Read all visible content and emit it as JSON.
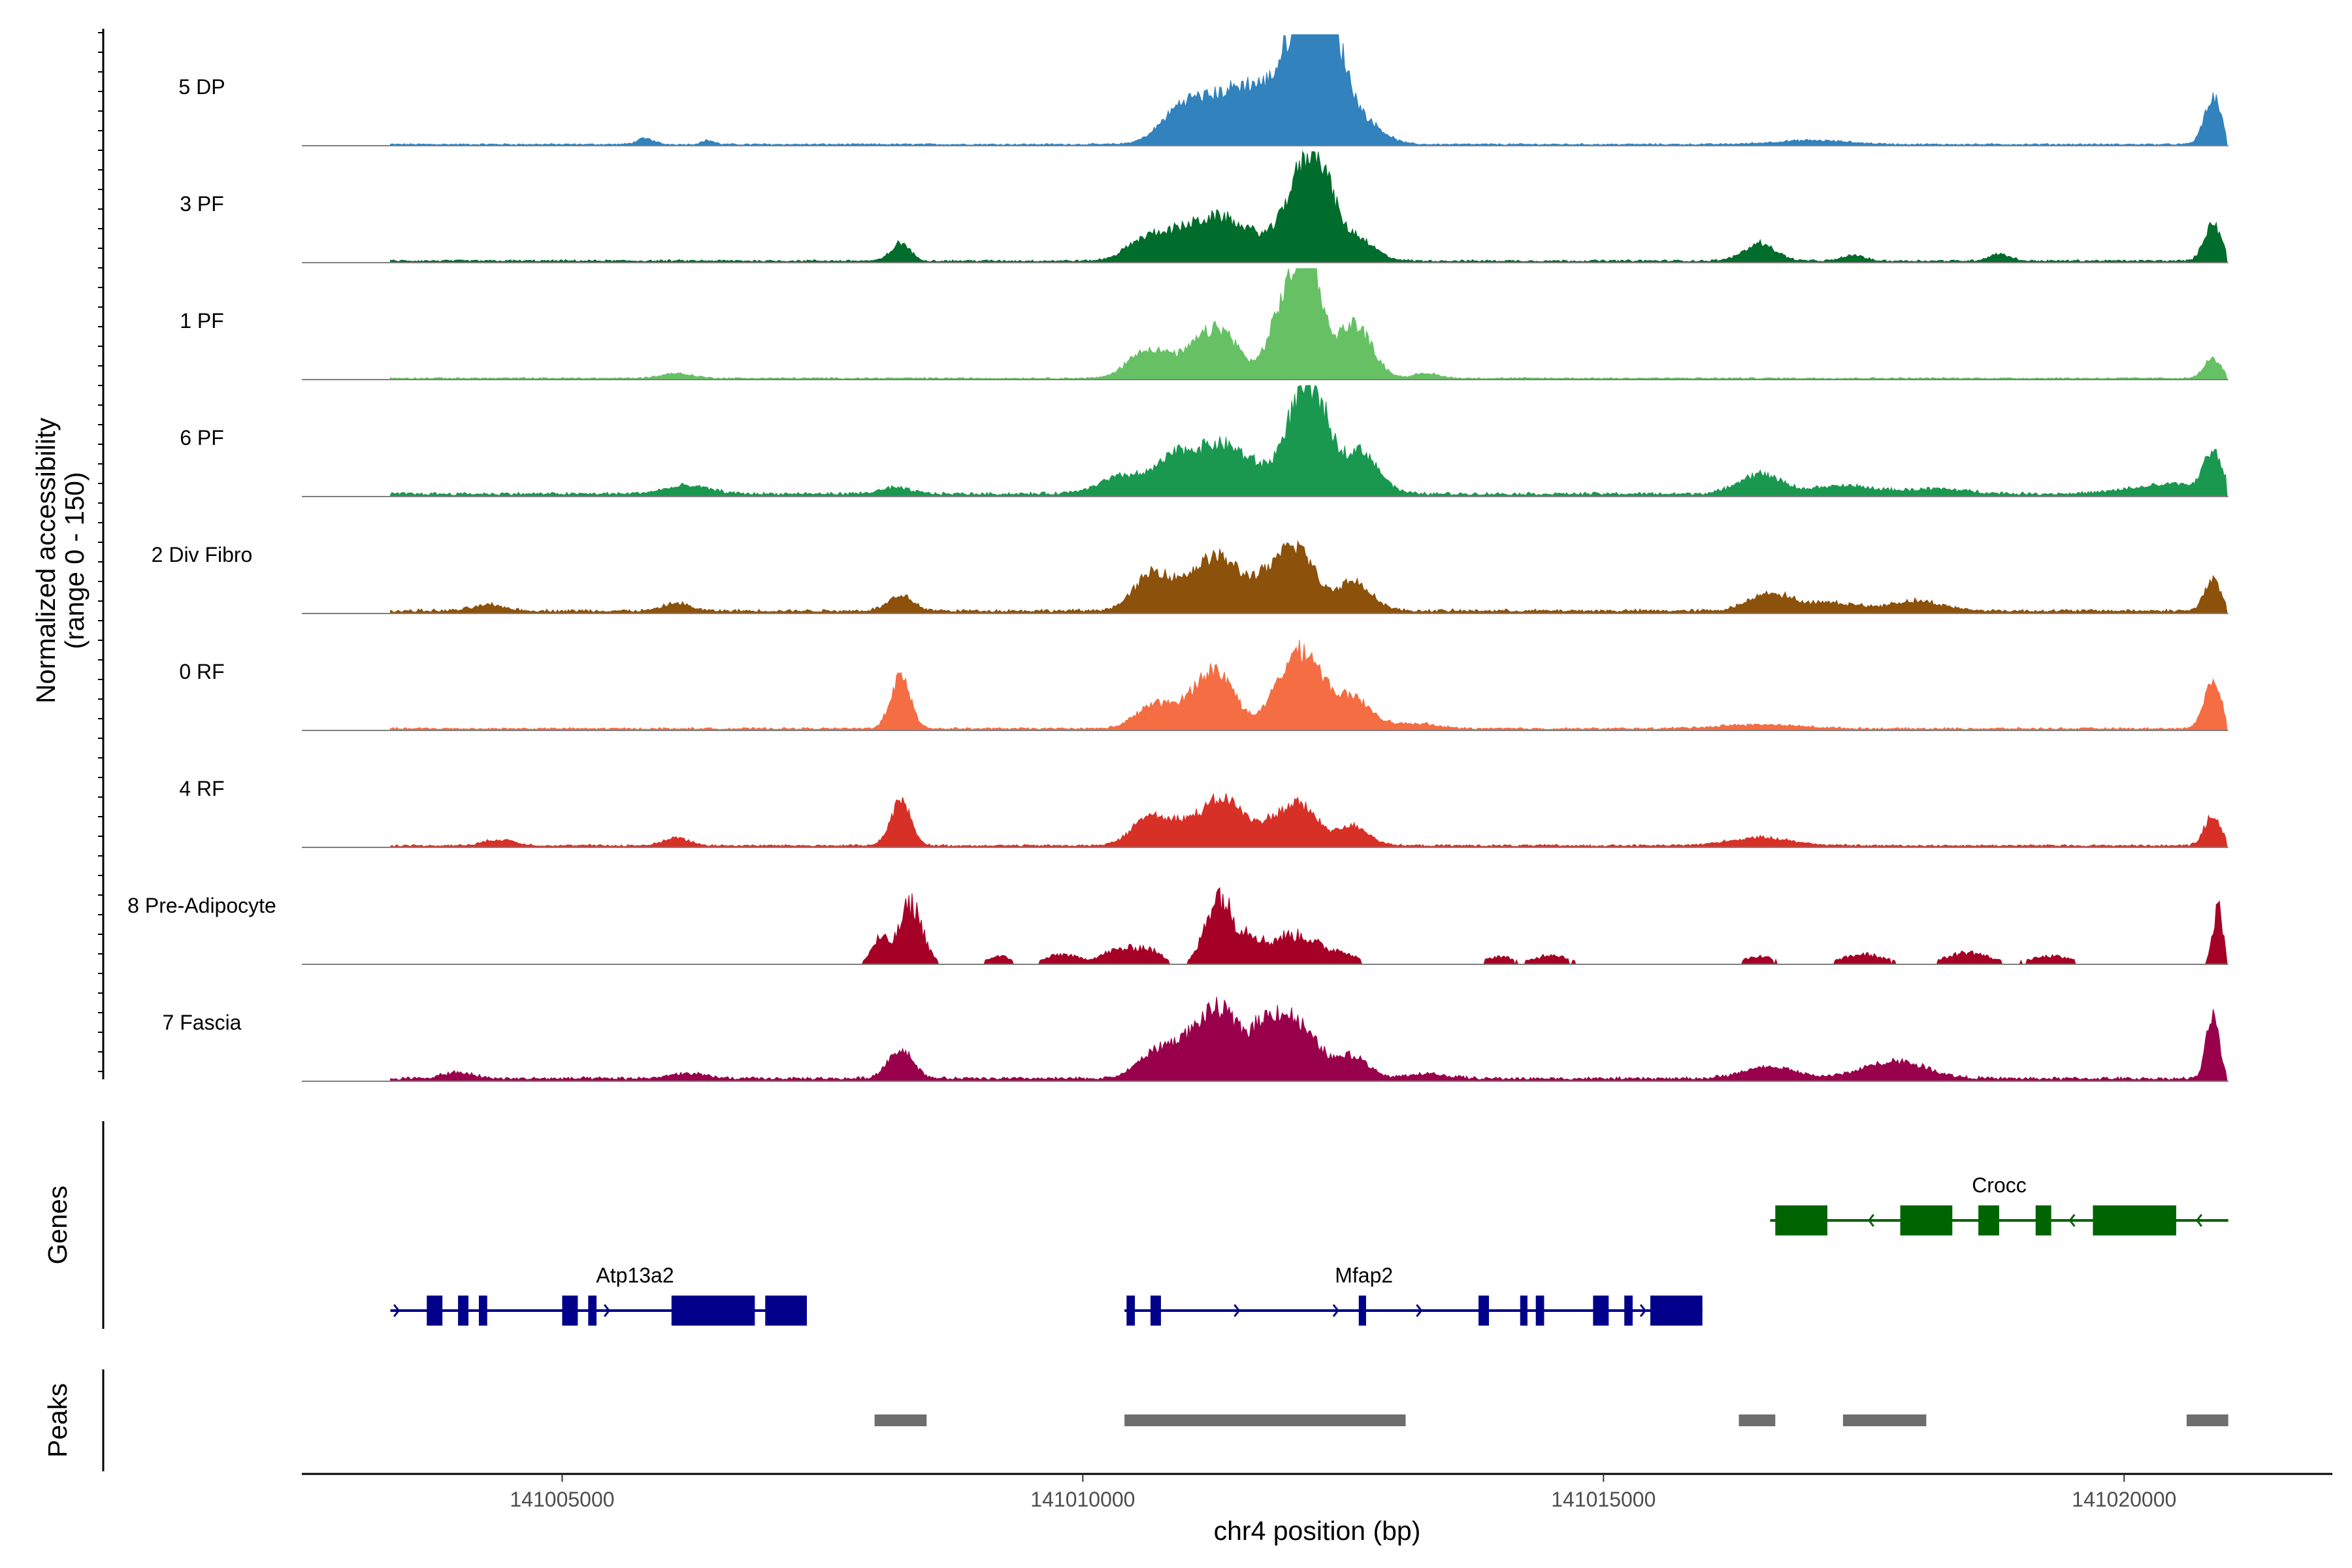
{
  "chart_data": {
    "type": "area",
    "title": "",
    "ylabel": "Normalized accessibility",
    "ylabel_range": "(range 0 - 150)",
    "yrange": [
      0,
      150
    ],
    "xlabel": "chr4 position (bp)",
    "xlim": [
      141002500,
      141022000
    ],
    "x_ticks": [
      141005000,
      141010000,
      141015000,
      141020000
    ],
    "x_tick_labels": [
      "141005000",
      "141010000",
      "141015000",
      "141020000"
    ],
    "region_start": 141003350,
    "region_end": 141021000,
    "series": [
      {
        "name": "5 DP",
        "color": "#3182bd",
        "background_base": 1.5,
        "peaks": [
          [
            141005800,
            80,
            6
          ],
          [
            141006400,
            60,
            4
          ],
          [
            141011000,
            220,
            42
          ],
          [
            141011350,
            180,
            26
          ],
          [
            141011650,
            200,
            50
          ],
          [
            141012000,
            150,
            32
          ],
          [
            141012200,
            200,
            125
          ],
          [
            141012450,
            120,
            42
          ],
          [
            141012700,
            180,
            22
          ],
          [
            141017000,
            350,
            4
          ],
          [
            141020850,
            80,
            48
          ]
        ]
      },
      {
        "name": "3 PF",
        "color": "#006d2c",
        "background_base": 2,
        "peaks": [
          [
            141008250,
            90,
            18
          ],
          [
            141010600,
            180,
            22
          ],
          [
            141010800,
            120,
            12
          ],
          [
            141011000,
            130,
            20
          ],
          [
            141011300,
            190,
            42
          ],
          [
            141011650,
            160,
            20
          ],
          [
            141012100,
            170,
            85
          ],
          [
            141012300,
            120,
            55
          ],
          [
            141012600,
            180,
            25
          ],
          [
            141016500,
            150,
            18
          ],
          [
            141017400,
            100,
            6
          ],
          [
            141018800,
            100,
            7
          ],
          [
            141020850,
            80,
            38
          ]
        ]
      },
      {
        "name": "1 PF",
        "color": "#66c164",
        "background_base": 1.5,
        "peaks": [
          [
            141006100,
            150,
            5
          ],
          [
            141010600,
            170,
            28
          ],
          [
            141010850,
            120,
            12
          ],
          [
            141011100,
            130,
            25
          ],
          [
            141011350,
            160,
            45
          ],
          [
            141011850,
            130,
            16
          ],
          [
            141012050,
            170,
            95
          ],
          [
            141012200,
            100,
            60
          ],
          [
            141012600,
            170,
            55
          ],
          [
            141013300,
            120,
            5
          ],
          [
            141020850,
            80,
            20
          ]
        ]
      },
      {
        "name": "6 PF",
        "color": "#1a9850",
        "background_base": 3,
        "peaks": [
          [
            141006200,
            220,
            8
          ],
          [
            141008200,
            150,
            6
          ],
          [
            141010400,
            240,
            18
          ],
          [
            141010900,
            180,
            35
          ],
          [
            141011300,
            200,
            45
          ],
          [
            141011650,
            180,
            22
          ],
          [
            141012100,
            160,
            95
          ],
          [
            141012300,
            110,
            40
          ],
          [
            141012650,
            180,
            45
          ],
          [
            141016500,
            200,
            20
          ],
          [
            141017300,
            300,
            8
          ],
          [
            141018200,
            300,
            5
          ],
          [
            141020500,
            400,
            10
          ],
          [
            141020850,
            80,
            38
          ]
        ]
      },
      {
        "name": "2 Div Fibro",
        "color": "#8c510a",
        "background_base": 3,
        "peaks": [
          [
            141004300,
            150,
            6
          ],
          [
            141006100,
            120,
            8
          ],
          [
            141008250,
            120,
            16
          ],
          [
            141010700,
            190,
            40
          ],
          [
            141011100,
            140,
            30
          ],
          [
            141011350,
            150,
            45
          ],
          [
            141011700,
            160,
            28
          ],
          [
            141012050,
            170,
            65
          ],
          [
            141012600,
            170,
            30
          ],
          [
            141016600,
            200,
            18
          ],
          [
            141017200,
            250,
            8
          ],
          [
            141018000,
            250,
            10
          ],
          [
            141020850,
            80,
            30
          ]
        ]
      },
      {
        "name": "0 RF",
        "color": "#f46d43",
        "background_base": 2,
        "peaks": [
          [
            141008250,
            95,
            52
          ],
          [
            141010700,
            180,
            25
          ],
          [
            141011050,
            140,
            18
          ],
          [
            141011300,
            170,
            55
          ],
          [
            141011900,
            150,
            30
          ],
          [
            141012150,
            170,
            70
          ],
          [
            141012600,
            180,
            30
          ],
          [
            141013200,
            200,
            5
          ],
          [
            141016500,
            400,
            4
          ],
          [
            141020850,
            80,
            50
          ]
        ]
      },
      {
        "name": "4 RF",
        "color": "#d73027",
        "background_base": 2,
        "peaks": [
          [
            141004400,
            150,
            6
          ],
          [
            141006100,
            120,
            8
          ],
          [
            141008250,
            95,
            45
          ],
          [
            141010650,
            170,
            30
          ],
          [
            141011000,
            160,
            20
          ],
          [
            141011350,
            170,
            45
          ],
          [
            141011800,
            200,
            20
          ],
          [
            141012100,
            170,
            35
          ],
          [
            141012600,
            150,
            20
          ],
          [
            141016500,
            300,
            8
          ],
          [
            141020850,
            80,
            30
          ]
        ]
      },
      {
        "name": "8 Pre-Adipocyte",
        "color": "#a50026",
        "background_base": 0,
        "peaks": [
          [
            141008050,
            80,
            25
          ],
          [
            141008350,
            110,
            60
          ],
          [
            141009200,
            120,
            8
          ],
          [
            141009800,
            150,
            10
          ],
          [
            141010300,
            150,
            12
          ],
          [
            141010600,
            150,
            15
          ],
          [
            141011300,
            120,
            70
          ],
          [
            141011600,
            120,
            30
          ],
          [
            141011900,
            120,
            20
          ],
          [
            141012150,
            150,
            25
          ],
          [
            141012500,
            120,
            12
          ],
          [
            141014000,
            120,
            8
          ],
          [
            141014500,
            150,
            10
          ],
          [
            141016500,
            150,
            8
          ],
          [
            141017500,
            200,
            10
          ],
          [
            141018500,
            200,
            12
          ],
          [
            141019300,
            200,
            8
          ],
          [
            141020900,
            50,
            55
          ]
        ]
      },
      {
        "name": "7 Fascia",
        "color": "#99004c",
        "background_base": 3,
        "peaks": [
          [
            141004000,
            150,
            6
          ],
          [
            141006200,
            180,
            5
          ],
          [
            141008250,
            120,
            30
          ],
          [
            141010700,
            180,
            25
          ],
          [
            141011050,
            180,
            35
          ],
          [
            141011350,
            170,
            60
          ],
          [
            141011700,
            130,
            30
          ],
          [
            141011900,
            160,
            45
          ],
          [
            141012150,
            180,
            35
          ],
          [
            141012600,
            150,
            22
          ],
          [
            141013300,
            200,
            5
          ],
          [
            141016600,
            250,
            12
          ],
          [
            141017800,
            300,
            18
          ],
          [
            141020850,
            60,
            65
          ]
        ]
      }
    ],
    "genes": [
      {
        "name": "Atp13a2",
        "strand": "+",
        "color": "#00008b",
        "start": 141003350,
        "end": 141007350,
        "exons": [
          [
            141003700,
            141003850
          ],
          [
            141004000,
            141004100
          ],
          [
            141004200,
            141004280
          ],
          [
            141005000,
            141005150
          ],
          [
            141005250,
            141005330
          ],
          [
            141006050,
            141006850
          ],
          [
            141006950,
            141007350
          ]
        ],
        "arrows": [
          141003430,
          141005450
        ]
      },
      {
        "name": "Mfap2",
        "strand": "+",
        "color": "#00008b",
        "start": 141010400,
        "end": 141015950,
        "exons": [
          [
            141010420,
            141010500
          ],
          [
            141010650,
            141010750
          ],
          [
            141012650,
            141012720
          ],
          [
            141013800,
            141013900
          ],
          [
            141014200,
            141014270
          ],
          [
            141014350,
            141014430
          ],
          [
            141014900,
            141015050
          ],
          [
            141015200,
            141015280
          ],
          [
            141015450,
            141015950
          ]
        ],
        "arrows": [
          141010480,
          141011500,
          141012450,
          141013250,
          141015400
        ]
      },
      {
        "name": "Crocc",
        "strand": "-",
        "color": "#006400",
        "start": 141016600,
        "end": 141021000,
        "exons": [
          [
            141016650,
            141017150
          ],
          [
            141017850,
            141018350
          ],
          [
            141018600,
            141018800
          ],
          [
            141019150,
            141019300
          ],
          [
            141019700,
            141020500
          ]
        ],
        "arrows": [
          141017550,
          141019480,
          141020700
        ]
      }
    ],
    "peaks_track": [
      [
        141008000,
        141008500
      ],
      [
        141010400,
        141013100
      ],
      [
        141016300,
        141016650
      ],
      [
        141017300,
        141018100
      ],
      [
        141020600,
        141021000
      ]
    ],
    "panel_titles": {
      "genes": "Genes",
      "peaks": "Peaks"
    },
    "legend": "none"
  }
}
